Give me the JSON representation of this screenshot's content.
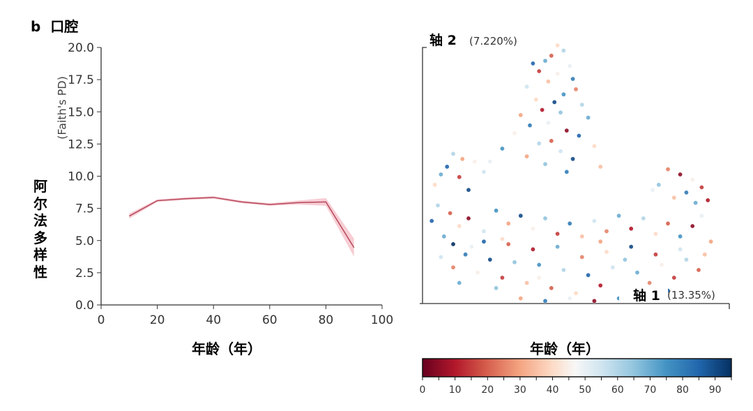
{
  "panel": {
    "letter": "b",
    "title": "口腔"
  },
  "chart_data": [
    {
      "type": "line",
      "xlabel": "年龄（年）",
      "ylabel": "阿尔法多样性",
      "ylabel_sub": "(Faith's PD)",
      "xlim": [
        0,
        100
      ],
      "ylim": [
        0,
        20
      ],
      "xticks": [
        "0",
        "20",
        "40",
        "60",
        "80",
        "100"
      ],
      "xtick_values": [
        0,
        20,
        40,
        60,
        80,
        100
      ],
      "yticks": [
        "0.0",
        "2.5",
        "5.0",
        "7.5",
        "10.0",
        "12.5",
        "15.0",
        "17.5",
        "20.0"
      ],
      "ytick_values": [
        0,
        2.5,
        5,
        7.5,
        10,
        12.5,
        15,
        17.5,
        20
      ],
      "x": [
        10,
        20,
        30,
        40,
        50,
        60,
        70,
        80,
        90
      ],
      "y": [
        6.9,
        8.1,
        8.25,
        8.35,
        8.0,
        7.8,
        7.95,
        8.0,
        4.45
      ],
      "ci_halfwidth": [
        0.2,
        0.1,
        0.1,
        0.1,
        0.1,
        0.1,
        0.15,
        0.3,
        0.7
      ],
      "line_color": "#b5475a",
      "band_color": "#f4b8c2",
      "grid": false
    },
    {
      "type": "scatter",
      "xlabel": "轴 1",
      "xlabel_pct": "(13.35%)",
      "ylabel": "轴 2",
      "ylabel_pct": "(7.220%)",
      "xlim": [
        -50,
        50
      ],
      "ylim": [
        -20,
        80
      ],
      "grid": false,
      "colorbar": {
        "label": "年龄（年）",
        "range": [
          0,
          95
        ],
        "ticks": [
          "0",
          "10",
          "20",
          "30",
          "40",
          "50",
          "60",
          "70",
          "80",
          "90"
        ],
        "tick_values": [
          0,
          10,
          20,
          30,
          40,
          50,
          60,
          70,
          80,
          90
        ],
        "stops": [
          [
            0,
            "#67001f"
          ],
          [
            10,
            "#b2182b"
          ],
          [
            20,
            "#d6604d"
          ],
          [
            30,
            "#f4a582"
          ],
          [
            40,
            "#fddbc7"
          ],
          [
            47,
            "#f7f7f7"
          ],
          [
            55,
            "#d1e5f0"
          ],
          [
            65,
            "#92c5de"
          ],
          [
            75,
            "#4393c3"
          ],
          [
            85,
            "#2166ac"
          ],
          [
            95,
            "#053061"
          ]
        ]
      },
      "points": [
        [
          -6,
          80,
          40
        ],
        [
          -4,
          78,
          60
        ],
        [
          -8,
          76,
          20
        ],
        [
          -10,
          74,
          70
        ],
        [
          -14,
          73,
          85
        ],
        [
          -2,
          72,
          50
        ],
        [
          -12,
          70,
          15
        ],
        [
          -6,
          69,
          45
        ],
        [
          -1,
          67,
          80
        ],
        [
          -9,
          66,
          35
        ],
        [
          -16,
          64,
          55
        ],
        [
          0,
          63,
          25
        ],
        [
          -4,
          61,
          75
        ],
        [
          -13,
          59,
          40
        ],
        [
          -7,
          58,
          90
        ],
        [
          2,
          57,
          60
        ],
        [
          -11,
          55,
          10
        ],
        [
          -5,
          54,
          65
        ],
        [
          -18,
          53,
          30
        ],
        [
          4,
          52,
          70
        ],
        [
          -9,
          50,
          50
        ],
        [
          -15,
          49,
          80
        ],
        [
          -3,
          47,
          5
        ],
        [
          -20,
          46,
          45
        ],
        [
          1,
          45,
          85
        ],
        [
          -8,
          43,
          20
        ],
        [
          -12,
          42,
          60
        ],
        [
          6,
          41,
          40
        ],
        [
          -24,
          40,
          75
        ],
        [
          -5,
          39,
          55
        ],
        [
          -16,
          37,
          30
        ],
        [
          -1,
          36,
          90
        ],
        [
          -28,
          35,
          50
        ],
        [
          -10,
          34,
          65
        ],
        [
          8,
          33,
          35
        ],
        [
          -3,
          31,
          80
        ],
        [
          -40,
          38,
          60
        ],
        [
          -37,
          36,
          30
        ],
        [
          -42,
          33,
          85
        ],
        [
          -33,
          35,
          45
        ],
        [
          -44,
          30,
          70
        ],
        [
          -38,
          29,
          15
        ],
        [
          -30,
          31,
          55
        ],
        [
          -46,
          26,
          40
        ],
        [
          -35,
          24,
          90
        ],
        [
          30,
          32,
          25
        ],
        [
          34,
          30,
          5
        ],
        [
          38,
          28,
          45
        ],
        [
          27,
          26,
          65
        ],
        [
          41,
          25,
          15
        ],
        [
          36,
          23,
          80
        ],
        [
          32,
          21,
          35
        ],
        [
          43,
          20,
          10
        ],
        [
          25,
          24,
          50
        ],
        [
          39,
          19,
          70
        ],
        [
          -45,
          18,
          60
        ],
        [
          -41,
          15,
          20
        ],
        [
          -47,
          12,
          85
        ],
        [
          -38,
          10,
          40
        ],
        [
          -43,
          6,
          70
        ],
        [
          -35,
          13,
          5
        ],
        [
          -30,
          8,
          55
        ],
        [
          -26,
          16,
          75
        ],
        [
          -22,
          11,
          30
        ],
        [
          -18,
          14,
          90
        ],
        [
          -14,
          9,
          45
        ],
        [
          -10,
          13,
          65
        ],
        [
          -6,
          7,
          15
        ],
        [
          -2,
          11,
          80
        ],
        [
          2,
          6,
          35
        ],
        [
          6,
          12,
          55
        ],
        [
          10,
          8,
          25
        ],
        [
          14,
          14,
          70
        ],
        [
          18,
          9,
          10
        ],
        [
          22,
          13,
          60
        ],
        [
          26,
          7,
          40
        ],
        [
          30,
          11,
          20
        ],
        [
          34,
          6,
          75
        ],
        [
          38,
          10,
          5
        ],
        [
          41,
          14,
          50
        ],
        [
          44,
          4,
          30
        ],
        [
          -44,
          -2,
          55
        ],
        [
          -40,
          -6,
          25
        ],
        [
          -36,
          -1,
          80
        ],
        [
          -32,
          -8,
          45
        ],
        [
          -28,
          -3,
          90
        ],
        [
          -24,
          -10,
          15
        ],
        [
          -20,
          -4,
          65
        ],
        [
          -16,
          -12,
          35
        ],
        [
          -12,
          -5,
          75
        ],
        [
          -8,
          -14,
          20
        ],
        [
          -4,
          -7,
          60
        ],
        [
          0,
          -16,
          40
        ],
        [
          4,
          -9,
          85
        ],
        [
          8,
          -13,
          10
        ],
        [
          12,
          -6,
          55
        ],
        [
          16,
          -15,
          30
        ],
        [
          20,
          -8,
          70
        ],
        [
          24,
          -12,
          25
        ],
        [
          28,
          -5,
          45
        ],
        [
          32,
          -10,
          15
        ],
        [
          36,
          -3,
          60
        ],
        [
          40,
          -7,
          20
        ],
        [
          -34,
          2,
          50
        ],
        [
          -26,
          -14,
          65
        ],
        [
          -18,
          -18,
          30
        ],
        [
          -10,
          -19,
          80
        ],
        [
          -2,
          -18,
          50
        ],
        [
          6,
          -19,
          5
        ],
        [
          14,
          -18,
          75
        ],
        [
          22,
          -17,
          35
        ],
        [
          -30,
          4,
          85
        ],
        [
          -14,
          1,
          10
        ],
        [
          -6,
          2,
          70
        ],
        [
          10,
          0,
          40
        ],
        [
          18,
          2,
          90
        ],
        [
          26,
          -1,
          15
        ],
        [
          34,
          1,
          55
        ],
        [
          -22,
          3,
          20
        ],
        [
          2,
          -2,
          25
        ],
        [
          -38,
          -12,
          70
        ],
        [
          30,
          -15,
          85
        ],
        [
          -12,
          -10,
          45
        ],
        [
          16,
          -3,
          65
        ],
        [
          -24,
          5,
          40
        ],
        [
          8,
          4,
          30
        ],
        [
          -40,
          3,
          95
        ],
        [
          42,
          -1,
          35
        ]
      ]
    }
  ]
}
